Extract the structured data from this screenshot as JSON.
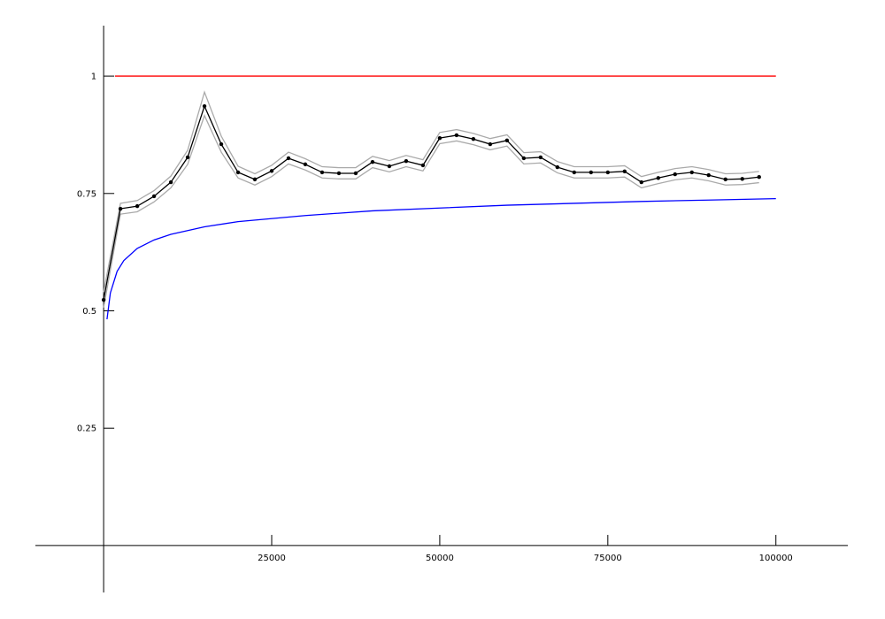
{
  "chart_data": {
    "type": "line",
    "xlim": [
      -10150,
      110700
    ],
    "ylim": [
      -0.1,
      1.1
    ],
    "xticks": [
      25000,
      50000,
      75000,
      100000
    ],
    "yticks": [
      0.25,
      0.5,
      0.75,
      1
    ],
    "series": [
      {
        "color": "#aaaaaa",
        "marker": false,
        "x": [
          0,
          2500,
          5000,
          7500,
          10000,
          12500,
          15000,
          17500,
          20000,
          22500,
          25000,
          27500,
          30000,
          32500,
          35000,
          37500,
          40000,
          42500,
          45000,
          47500,
          50000,
          52500,
          55000,
          57500,
          60000,
          62500,
          65000,
          67500,
          70000,
          72500,
          75000,
          77500,
          80000,
          82500,
          85000,
          87500,
          90000,
          92500,
          95000,
          97500
        ],
        "values": [
          0.54,
          0.729,
          0.735,
          0.756,
          0.787,
          0.842,
          0.966,
          0.872,
          0.808,
          0.792,
          0.81,
          0.838,
          0.824,
          0.807,
          0.805,
          0.805,
          0.829,
          0.82,
          0.831,
          0.822,
          0.88,
          0.886,
          0.878,
          0.867,
          0.875,
          0.837,
          0.839,
          0.818,
          0.807,
          0.807,
          0.807,
          0.809,
          0.786,
          0.795,
          0.803,
          0.807,
          0.801,
          0.792,
          0.793,
          0.797
        ]
      },
      {
        "color": "#aaaaaa",
        "marker": false,
        "x": [
          0,
          2500,
          5000,
          7500,
          10000,
          12500,
          15000,
          17500,
          20000,
          22500,
          25000,
          27500,
          30000,
          32500,
          35000,
          37500,
          40000,
          42500,
          45000,
          47500,
          50000,
          52500,
          55000,
          57500,
          60000,
          62500,
          65000,
          67500,
          70000,
          72500,
          75000,
          77500,
          80000,
          82500,
          85000,
          87500,
          90000,
          92500,
          95000,
          97500
        ],
        "values": [
          0.507,
          0.706,
          0.711,
          0.732,
          0.762,
          0.812,
          0.916,
          0.838,
          0.783,
          0.768,
          0.786,
          0.813,
          0.8,
          0.783,
          0.781,
          0.781,
          0.805,
          0.796,
          0.807,
          0.798,
          0.856,
          0.862,
          0.854,
          0.843,
          0.851,
          0.813,
          0.815,
          0.794,
          0.783,
          0.783,
          0.783,
          0.785,
          0.762,
          0.771,
          0.779,
          0.783,
          0.777,
          0.768,
          0.769,
          0.773
        ]
      },
      {
        "color": "#000000",
        "marker": true,
        "x": [
          0,
          2500,
          5000,
          7500,
          10000,
          12500,
          15000,
          17500,
          20000,
          22500,
          25000,
          27500,
          30000,
          32500,
          35000,
          37500,
          40000,
          42500,
          45000,
          47500,
          50000,
          52500,
          55000,
          57500,
          60000,
          62500,
          65000,
          67500,
          70000,
          72500,
          75000,
          77500,
          80000,
          82500,
          85000,
          87500,
          90000,
          92500,
          95000,
          97500
        ],
        "values": [
          0.5235,
          0.7175,
          0.723,
          0.744,
          0.774,
          0.827,
          0.936,
          0.855,
          0.795,
          0.78,
          0.798,
          0.825,
          0.812,
          0.795,
          0.793,
          0.793,
          0.817,
          0.808,
          0.819,
          0.81,
          0.868,
          0.874,
          0.866,
          0.855,
          0.863,
          0.825,
          0.827,
          0.806,
          0.795,
          0.795,
          0.795,
          0.797,
          0.774,
          0.783,
          0.791,
          0.795,
          0.789,
          0.78,
          0.781,
          0.785
        ]
      },
      {
        "color": "#ff0000",
        "marker": false,
        "x": [
          1700,
          100000
        ],
        "values": [
          1,
          1
        ]
      },
      {
        "color": "#0000ff",
        "marker": false,
        "x": [
          500,
          1000,
          2000,
          3000,
          5000,
          7500,
          10000,
          15000,
          20000,
          30000,
          40000,
          50000,
          60000,
          70000,
          80000,
          90000,
          100000
        ],
        "values": [
          0.482,
          0.538,
          0.584,
          0.607,
          0.633,
          0.651,
          0.663,
          0.679,
          0.69,
          0.703,
          0.713,
          0.719,
          0.725,
          0.729,
          0.733,
          0.736,
          0.739
        ]
      }
    ]
  }
}
